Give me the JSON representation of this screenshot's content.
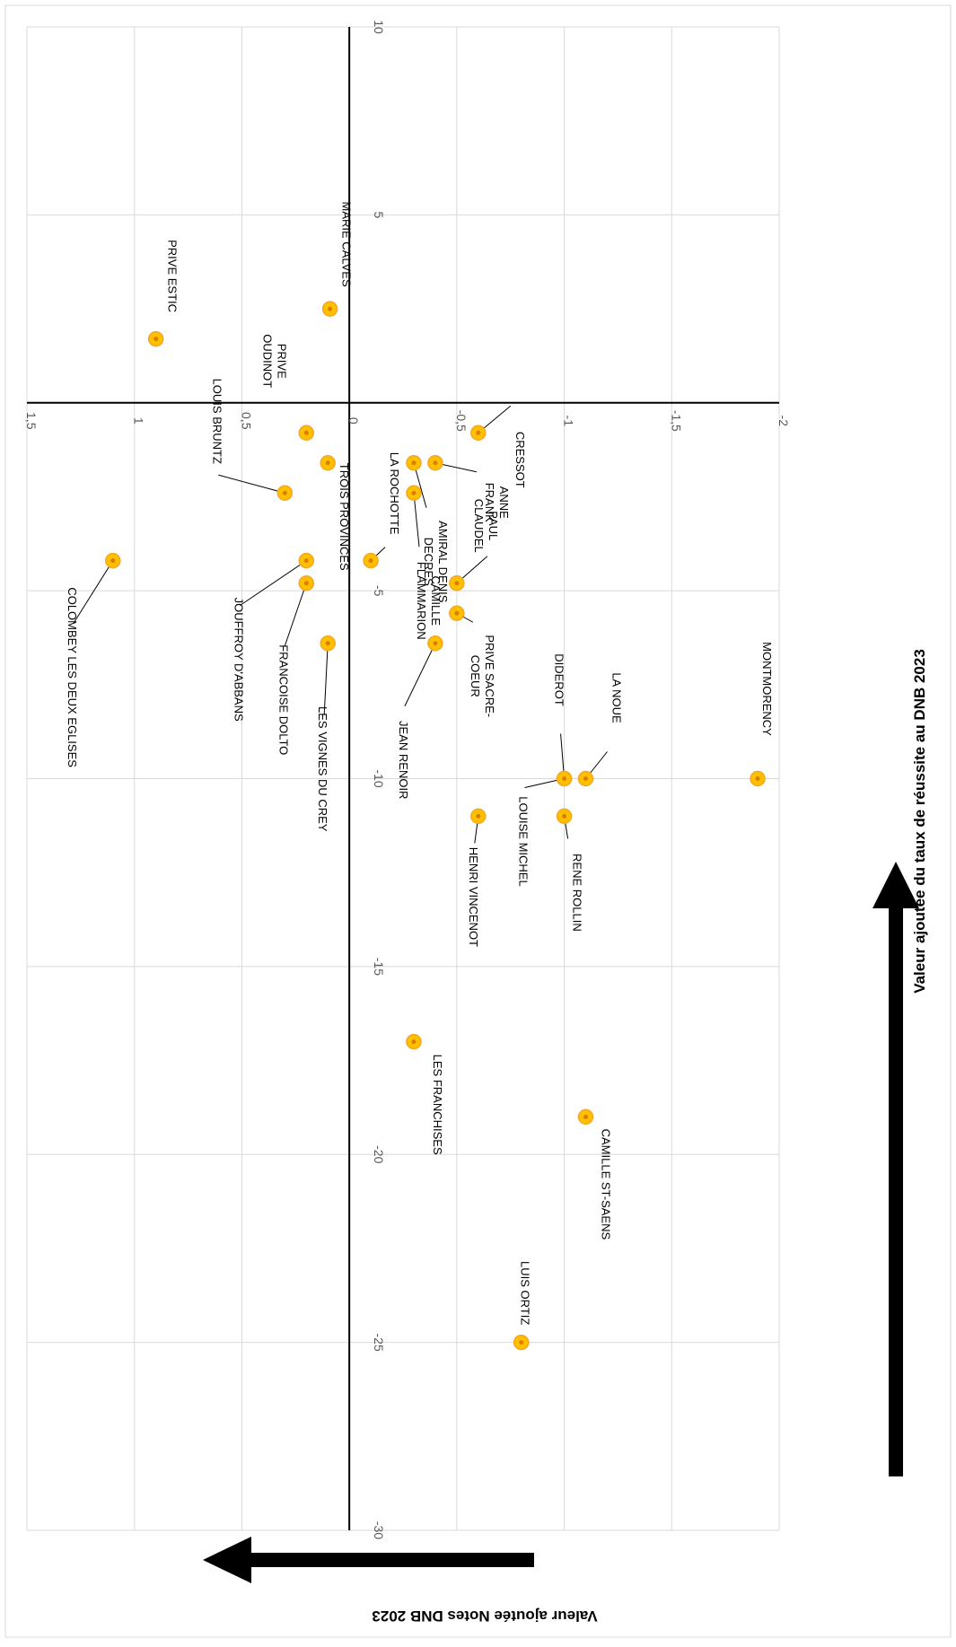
{
  "chart_data": {
    "type": "scatter",
    "title": "",
    "xlabel": "Valeur ajoutée du taux de réussite au DNB 2023",
    "ylabel": "Valeur ajoutée Notes DNB 2023",
    "xlim": [
      -2,
      1.5
    ],
    "ylim": [
      -30,
      10
    ],
    "x_ticks": [
      -2,
      -1.5,
      -1,
      -0.5,
      0,
      0.5,
      1,
      1.5
    ],
    "x_tick_labels": [
      "-2",
      "-1,5",
      "-1",
      "-0,5",
      "0",
      "0,5",
      "1",
      "1,5"
    ],
    "y_ticks": [
      -30,
      -25,
      -20,
      -15,
      -10,
      -5,
      0,
      5,
      10
    ],
    "y_tick_labels": [
      "-30",
      "-25",
      "-20",
      "-15",
      "-10",
      "-5",
      "0",
      "5",
      "10"
    ],
    "grid": true,
    "legend": "none",
    "marker_color": "#FFC000",
    "marker_edge_color": "#F5A623",
    "points": [
      {
        "name": "PRIVE ESTIC",
        "x": 0.9,
        "y": 1.7
      },
      {
        "name": "MARIE CALVES",
        "x": 0.09,
        "y": 2.5
      },
      {
        "name": "PRIVE OUDINOT",
        "x": 0.2,
        "y": -0.8
      },
      {
        "name": "LOUIS BRUNTZ",
        "x": 0.3,
        "y": -2.4
      },
      {
        "name": "TROIS PROVINCES",
        "x": 0.1,
        "y": -1.6
      },
      {
        "name": "LA ROCHOTTE",
        "x": -0.1,
        "y": -4.2
      },
      {
        "name": "CAMILLE FLAMMARION",
        "x": -0.3,
        "y": -2.4
      },
      {
        "name": "AMIRAL DENIS DECRES",
        "x": -0.3,
        "y": -1.6
      },
      {
        "name": "PAUL CLAUDEL",
        "x": -0.4,
        "y": -1.6
      },
      {
        "name": "CRESSOT",
        "x": -0.6,
        "y": -0.8
      },
      {
        "name": "ANNE FRANK",
        "x": -0.5,
        "y": -4.8
      },
      {
        "name": "COLOMBEY LES DEUX EGLISES",
        "x": 1.1,
        "y": -4.2
      },
      {
        "name": "JOUFFROY D'ABBANS",
        "x": 0.2,
        "y": -4.2
      },
      {
        "name": "FRANCOISE DOLTO",
        "x": 0.2,
        "y": -4.8
      },
      {
        "name": "LES VIGNES DU CREY",
        "x": 0.1,
        "y": -6.4
      },
      {
        "name": "PRIVE SACRE-COEUR",
        "x": -0.5,
        "y": -5.6
      },
      {
        "name": "JEAN RENOIR",
        "x": -0.4,
        "y": -6.4
      },
      {
        "name": "HENRI VINCENOT",
        "x": -0.6,
        "y": -11.0
      },
      {
        "name": "DIDEROT",
        "x": -1.0,
        "y": -10.0
      },
      {
        "name": "LOUISE MICHEL",
        "x": -1.0,
        "y": -10.0
      },
      {
        "name": "LA NOUE",
        "x": -1.1,
        "y": -10.0
      },
      {
        "name": "RENE ROLLIN",
        "x": -1.0,
        "y": -11.0
      },
      {
        "name": "MONTMORENCY",
        "x": -1.9,
        "y": -10.0
      },
      {
        "name": "LES FRANCHISES",
        "x": -0.3,
        "y": -17.0
      },
      {
        "name": "CAMILLE ST-SAENS",
        "x": -1.1,
        "y": -19.0
      },
      {
        "name": "LUIS ORTIZ",
        "x": -0.8,
        "y": -25.0
      }
    ]
  }
}
